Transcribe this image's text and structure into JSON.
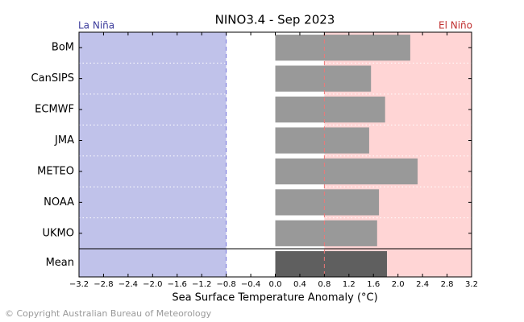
{
  "chart_data": {
    "type": "bar",
    "orientation": "horizontal",
    "title": "NINO3.4 - Sep 2023",
    "x_label": "Sea Surface Temperature Anomaly (°C)",
    "la_nina_label": "La Niña",
    "el_nino_label": "El Niño",
    "la_nina_threshold": -0.8,
    "el_nino_threshold": 0.8,
    "la_nina_color": "#c0c2ea",
    "el_nino_color": "#ffd5d5",
    "la_nina_line_color": "#7777dd",
    "el_nino_line_color": "#ee7777",
    "categories": [
      "BoM",
      "CanSIPS",
      "ECMWF",
      "JMA",
      "METEO",
      "NOAA",
      "UKMO"
    ],
    "values": [
      2.2,
      1.56,
      1.79,
      1.53,
      2.32,
      1.69,
      1.66
    ],
    "color": "#999999",
    "mean": {
      "label": "Mean",
      "value": 1.82,
      "color": "#5f5f5f"
    },
    "xlim": [
      -3.2,
      3.2
    ],
    "xticks": [
      {
        "value": -3.2,
        "label": "−3.2"
      },
      {
        "value": -2.8,
        "label": "−2.8"
      },
      {
        "value": -2.4,
        "label": "−2.4"
      },
      {
        "value": -2.0,
        "label": "−2.0"
      },
      {
        "value": -1.6,
        "label": "−1.6"
      },
      {
        "value": -1.2,
        "label": "−1.2"
      },
      {
        "value": -0.8,
        "label": "−0.8"
      },
      {
        "value": -0.4,
        "label": "−0.4"
      },
      {
        "value": 0,
        "label": "0.0"
      },
      0.4,
      0.8,
      1.2,
      1.6,
      {
        "value": 2,
        "label": "2.0"
      },
      2.4,
      2.8,
      3.2
    ],
    "copyright": "© Copyright Australian Bureau of Meteorology"
  }
}
